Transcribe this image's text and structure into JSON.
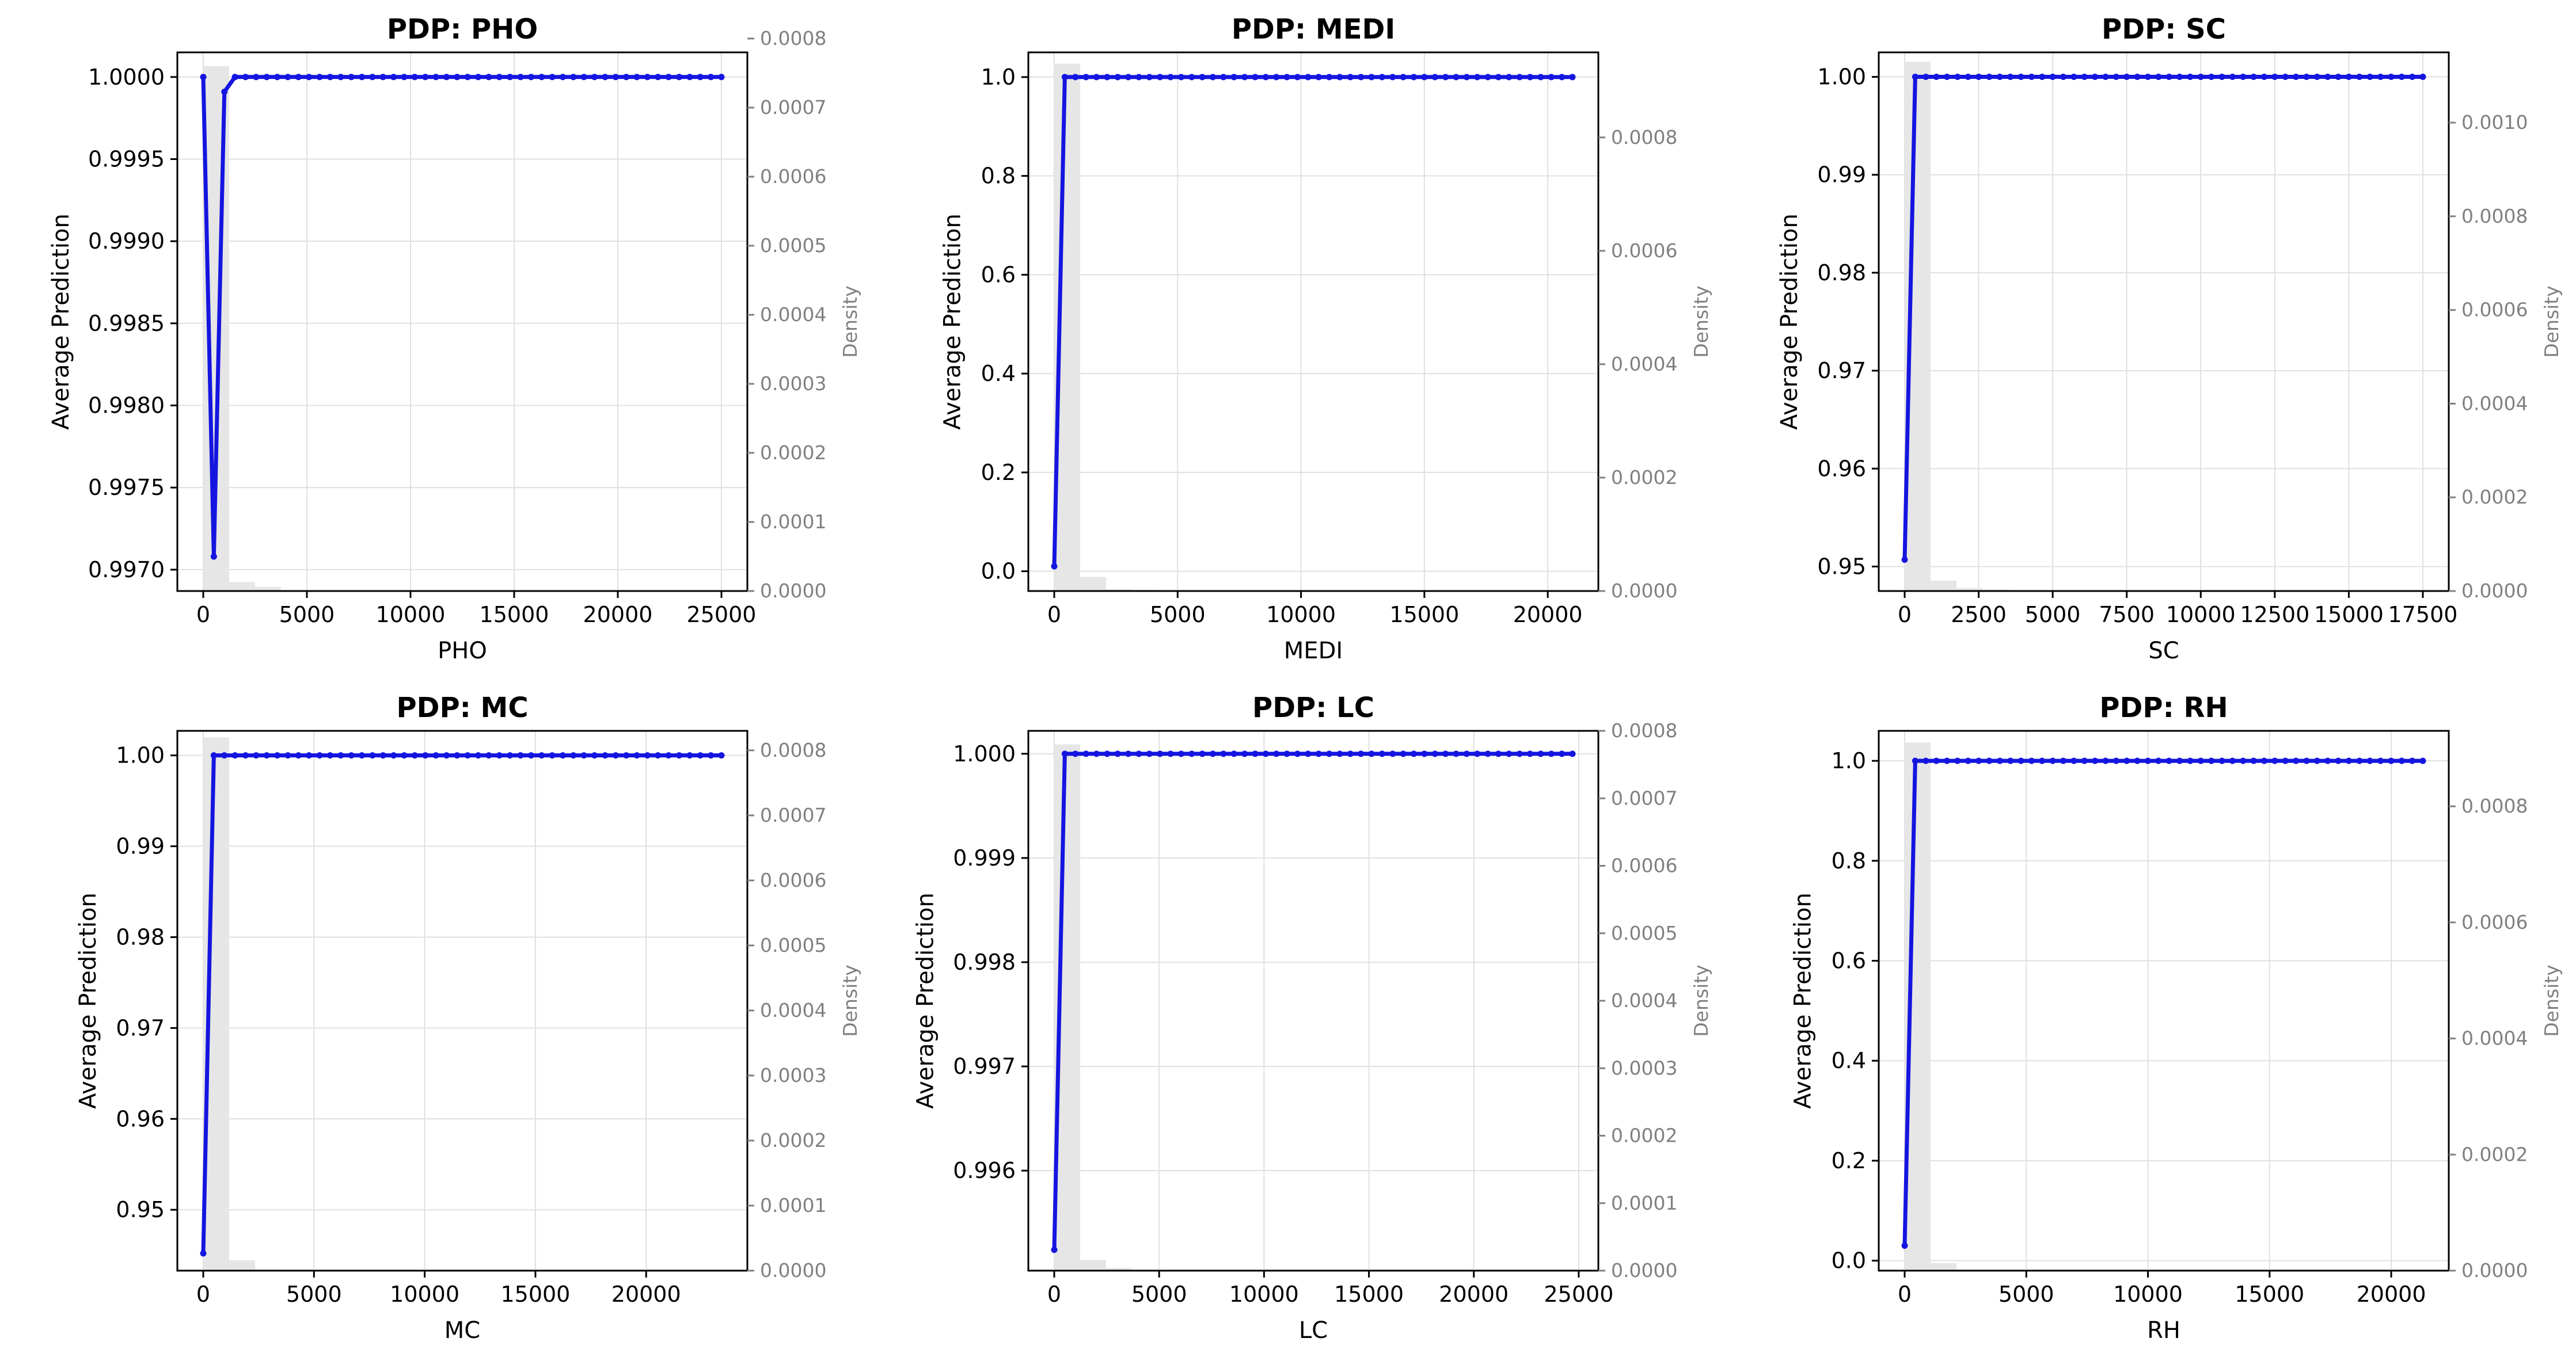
{
  "chart_data": [
    {
      "type": "line",
      "title": "PDP: PHO",
      "xlabel": "PHO",
      "ylabel": "Average Prediction",
      "y2label": "Density",
      "xlim": [
        -1250,
        26250
      ],
      "ylim": [
        0.99687,
        1.00015
      ],
      "y2lim": [
        0,
        0.00078
      ],
      "xticks": [
        0,
        5000,
        10000,
        15000,
        20000,
        25000
      ],
      "xticklabels": [
        "0",
        "5000",
        "10000",
        "15000",
        "20000",
        "25000"
      ],
      "yticks": [
        0.997,
        0.9975,
        0.998,
        0.9985,
        0.999,
        0.9995,
        1.0
      ],
      "yticklabels": [
        "0.9970",
        "0.9975",
        "0.9980",
        "0.9985",
        "0.9990",
        "0.9995",
        "1.0000"
      ],
      "y2ticks": [
        0,
        0.0001,
        0.0002,
        0.0003,
        0.0004,
        0.0005,
        0.0006,
        0.0007,
        0.0008
      ],
      "y2ticklabels": [
        "0.0000",
        "0.0001",
        "0.0002",
        "0.0003",
        "0.0004",
        "0.0005",
        "0.0006",
        "0.0007",
        "0.0008"
      ],
      "grid": true,
      "line_color": "#1515e0",
      "hist_color": "#e6e6e6",
      "series": [
        {
          "x": [
            0,
            510,
            1020,
            1530,
            2040
          ],
          "y": [
            1.0,
            0.99708,
            0.99991,
            1.0,
            1.0
          ],
          "x_end": 25000,
          "n_points": 50
        }
      ],
      "histogram": {
        "edges": [
          0,
          1250,
          2500,
          3750
        ],
        "density": [
          0.00076,
          1.3e-05,
          6e-06
        ]
      }
    },
    {
      "type": "line",
      "title": "PDP: MEDI",
      "xlabel": "MEDI",
      "ylabel": "Average Prediction",
      "y2label": "Density",
      "xlim": [
        -1050,
        22050
      ],
      "ylim": [
        -0.04,
        1.05
      ],
      "y2lim": [
        0,
        0.00095
      ],
      "xticks": [
        0,
        5000,
        10000,
        15000,
        20000
      ],
      "xticklabels": [
        "0",
        "5000",
        "10000",
        "15000",
        "20000"
      ],
      "yticks": [
        0.0,
        0.2,
        0.4,
        0.6,
        0.8,
        1.0
      ],
      "yticklabels": [
        "0.0",
        "0.2",
        "0.4",
        "0.6",
        "0.8",
        "1.0"
      ],
      "y2ticks": [
        0,
        0.0002,
        0.0004,
        0.0006,
        0.0008
      ],
      "y2ticklabels": [
        "0.0000",
        "0.0002",
        "0.0004",
        "0.0006",
        "0.0008"
      ],
      "grid": true,
      "line_color": "#1515e0",
      "hist_color": "#e6e6e6",
      "series": [
        {
          "x": [
            0,
            430
          ],
          "y": [
            0.01,
            1.0
          ],
          "x_end": 21000,
          "n_points": 50
        }
      ],
      "histogram": {
        "edges": [
          0,
          1050,
          2100,
          3150,
          4200
        ],
        "density": [
          0.00093,
          2.5e-05,
          3e-06,
          2e-06
        ]
      }
    },
    {
      "type": "line",
      "title": "PDP: SC",
      "xlabel": "SC",
      "ylabel": "Average Prediction",
      "y2label": "Density",
      "xlim": [
        -875,
        18375
      ],
      "ylim": [
        0.9475,
        1.0025
      ],
      "y2lim": [
        0,
        0.00115
      ],
      "xticks": [
        0,
        2500,
        5000,
        7500,
        10000,
        12500,
        15000,
        17500
      ],
      "xticklabels": [
        "0",
        "2500",
        "5000",
        "7500",
        "10000",
        "12500",
        "15000",
        "17500"
      ],
      "yticks": [
        0.95,
        0.96,
        0.97,
        0.98,
        0.99,
        1.0
      ],
      "yticklabels": [
        "0.95",
        "0.96",
        "0.97",
        "0.98",
        "0.99",
        "1.00"
      ],
      "y2ticks": [
        0,
        0.0002,
        0.0004,
        0.0006,
        0.0008,
        0.001
      ],
      "y2ticklabels": [
        "0.0000",
        "0.0002",
        "0.0004",
        "0.0006",
        "0.0008",
        "0.0010"
      ],
      "grid": true,
      "line_color": "#1515e0",
      "hist_color": "#e6e6e6",
      "series": [
        {
          "x": [
            0,
            357
          ],
          "y": [
            0.9507,
            1.0
          ],
          "x_end": 17500,
          "n_points": 50
        }
      ],
      "histogram": {
        "edges": [
          0,
          875,
          1750,
          2625,
          3500
        ],
        "density": [
          0.00113,
          2.2e-05,
          6e-06,
          3e-06
        ]
      }
    },
    {
      "type": "line",
      "title": "PDP: MC",
      "xlabel": "MC",
      "ylabel": "Average Prediction",
      "y2label": "Density",
      "xlim": [
        -1170,
        24570
      ],
      "ylim": [
        0.9433,
        1.0027
      ],
      "y2lim": [
        0,
        0.00083
      ],
      "xticks": [
        0,
        5000,
        10000,
        15000,
        20000
      ],
      "xticklabels": [
        "0",
        "5000",
        "10000",
        "15000",
        "20000"
      ],
      "yticks": [
        0.95,
        0.96,
        0.97,
        0.98,
        0.99,
        1.0
      ],
      "yticklabels": [
        "0.95",
        "0.96",
        "0.97",
        "0.98",
        "0.99",
        "1.00"
      ],
      "y2ticks": [
        0,
        0.0001,
        0.0002,
        0.0003,
        0.0004,
        0.0005,
        0.0006,
        0.0007,
        0.0008
      ],
      "y2ticklabels": [
        "0.0000",
        "0.0001",
        "0.0002",
        "0.0003",
        "0.0004",
        "0.0005",
        "0.0006",
        "0.0007",
        "0.0008"
      ],
      "grid": true,
      "line_color": "#1515e0",
      "hist_color": "#e6e6e6",
      "series": [
        {
          "x": [
            0,
            478
          ],
          "y": [
            0.9452,
            1.0
          ],
          "x_end": 23400,
          "n_points": 50
        }
      ],
      "histogram": {
        "edges": [
          0,
          1170,
          2340,
          3510
        ],
        "density": [
          0.00082,
          1.6e-05,
          2e-06
        ]
      }
    },
    {
      "type": "line",
      "title": "PDP: LC",
      "xlabel": "LC",
      "ylabel": "Average Prediction",
      "y2label": "Density",
      "xlim": [
        -1235,
        25935
      ],
      "ylim": [
        0.99504,
        1.00022
      ],
      "y2lim": [
        0,
        0.0008
      ],
      "xticks": [
        0,
        5000,
        10000,
        15000,
        20000,
        25000
      ],
      "xticklabels": [
        "0",
        "5000",
        "10000",
        "15000",
        "20000",
        "25000"
      ],
      "yticks": [
        0.996,
        0.997,
        0.998,
        0.999,
        1.0
      ],
      "yticklabels": [
        "0.996",
        "0.997",
        "0.998",
        "0.999",
        "1.000"
      ],
      "y2ticks": [
        0,
        0.0001,
        0.0002,
        0.0003,
        0.0004,
        0.0005,
        0.0006,
        0.0007,
        0.0008
      ],
      "y2ticklabels": [
        "0.0000",
        "0.0001",
        "0.0002",
        "0.0003",
        "0.0004",
        "0.0005",
        "0.0006",
        "0.0007",
        "0.0008"
      ],
      "grid": true,
      "line_color": "#1515e0",
      "hist_color": "#e6e6e6",
      "series": [
        {
          "x": [
            0,
            504
          ],
          "y": [
            0.99524,
            1.0
          ],
          "x_end": 24700,
          "n_points": 50
        }
      ],
      "histogram": {
        "edges": [
          0,
          1235,
          2470,
          3705
        ],
        "density": [
          0.00078,
          1.6e-05,
          4e-06
        ]
      }
    },
    {
      "type": "line",
      "title": "PDP: RH",
      "xlabel": "RH",
      "ylabel": "Average Prediction",
      "y2label": "Density",
      "xlim": [
        -1065,
        22365
      ],
      "ylim": [
        -0.02,
        1.06
      ],
      "y2lim": [
        0,
        0.00093
      ],
      "xticks": [
        0,
        5000,
        10000,
        15000,
        20000
      ],
      "xticklabels": [
        "0",
        "5000",
        "10000",
        "15000",
        "20000"
      ],
      "yticks": [
        0.0,
        0.2,
        0.4,
        0.6,
        0.8,
        1.0
      ],
      "yticklabels": [
        "0.0",
        "0.2",
        "0.4",
        "0.6",
        "0.8",
        "1.0"
      ],
      "y2ticks": [
        0,
        0.0002,
        0.0004,
        0.0006,
        0.0008
      ],
      "y2ticklabels": [
        "0.0000",
        "0.0002",
        "0.0004",
        "0.0006",
        "0.0008"
      ],
      "grid": true,
      "line_color": "#1515e0",
      "hist_color": "#e6e6e6",
      "series": [
        {
          "x": [
            0,
            435
          ],
          "y": [
            0.03,
            1.0
          ],
          "x_end": 21300,
          "n_points": 50
        }
      ],
      "histogram": {
        "edges": [
          0,
          1065,
          2130,
          3195
        ],
        "density": [
          0.00091,
          1.3e-05,
          2e-06
        ]
      }
    }
  ]
}
